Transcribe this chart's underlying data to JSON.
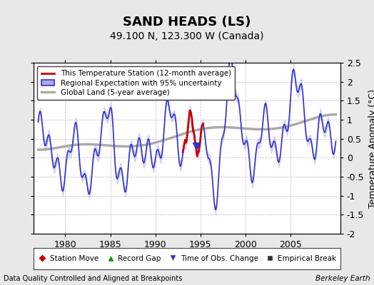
{
  "title": "SAND HEADS (LS)",
  "subtitle": "49.100 N, 123.300 W (Canada)",
  "ylabel": "Temperature Anomaly (°C)",
  "xlabel_bottom_left": "Data Quality Controlled and Aligned at Breakpoints",
  "xlabel_bottom_right": "Berkeley Earth",
  "ylim": [
    -2.0,
    2.5
  ],
  "xlim": [
    1976.5,
    2010.5
  ],
  "xticks": [
    1980,
    1985,
    1990,
    1995,
    2000,
    2005
  ],
  "yticks": [
    -2,
    -1.5,
    -1,
    -0.5,
    0,
    0.5,
    1,
    1.5,
    2,
    2.5
  ],
  "bg_color": "#e8e8e8",
  "plot_bg_color": "#ffffff",
  "legend_items": [
    {
      "label": "This Temperature Station (12-month average)",
      "color": "#cc0000",
      "lw": 2.0
    },
    {
      "label": "Regional Expectation with 95% uncertainty",
      "color": "#3333cc",
      "lw": 1.5
    },
    {
      "label": "Global Land (5-year average)",
      "color": "#aaaaaa",
      "lw": 2.5
    }
  ],
  "bottom_legend": [
    {
      "label": "Station Move",
      "marker": "D",
      "color": "#cc0000"
    },
    {
      "label": "Record Gap",
      "marker": "^",
      "color": "#009900"
    },
    {
      "label": "Time of Obs. Change",
      "marker": "v",
      "color": "#3333cc"
    },
    {
      "label": "Empirical Break",
      "marker": "s",
      "color": "#333333"
    }
  ],
  "title_fontsize": 13,
  "subtitle_fontsize": 10,
  "axis_fontsize": 9,
  "tick_fontsize": 9
}
